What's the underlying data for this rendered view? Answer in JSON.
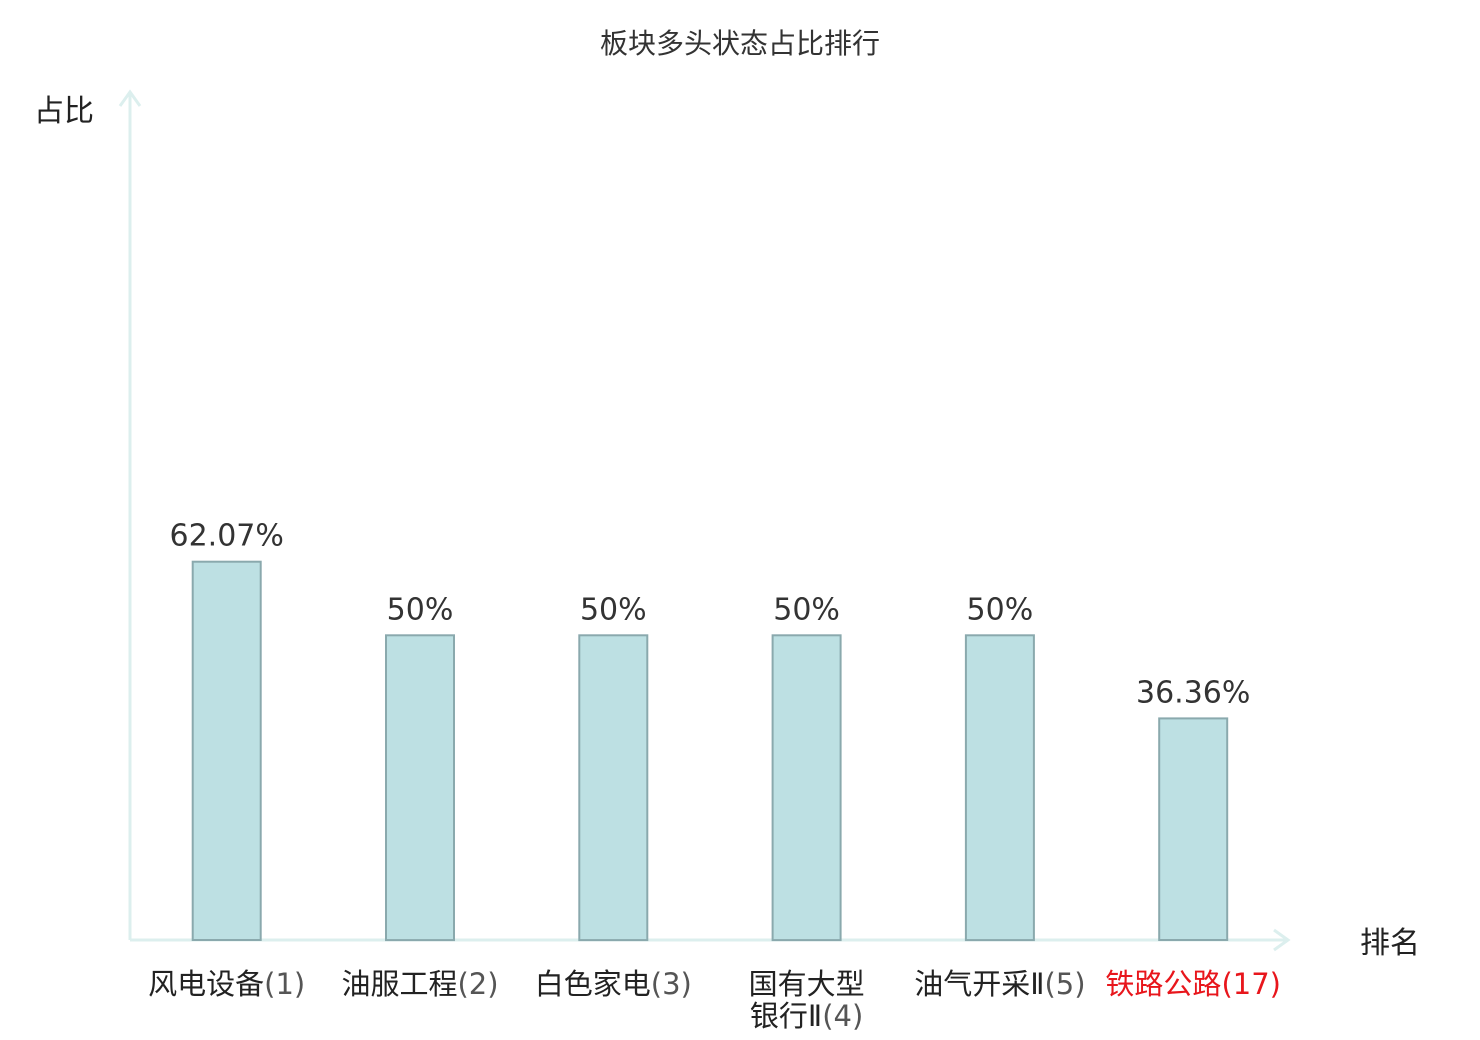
{
  "chart_data": {
    "type": "bar",
    "title": "板块多头状态占比排行",
    "ylabel": "占比",
    "xlabel": "排名",
    "ylim": [
      0,
      100
    ],
    "grid": false,
    "categories": [
      {
        "name": "风电设备",
        "rank": "(1)",
        "highlight": false
      },
      {
        "name": "油服工程",
        "rank": "(2)",
        "highlight": false
      },
      {
        "name": "白色家电",
        "rank": "(3)",
        "highlight": false
      },
      {
        "name": "国有大型银行Ⅱ",
        "rank": "(4)",
        "highlight": false
      },
      {
        "name": "油气开采Ⅱ",
        "rank": "(5)",
        "highlight": false
      },
      {
        "name": "铁路公路",
        "rank": "(17)",
        "highlight": true
      }
    ],
    "values": [
      62.07,
      50,
      50,
      50,
      50,
      36.36
    ],
    "value_labels": [
      "62.07%",
      "50%",
      "50%",
      "50%",
      "50%",
      "36.36%"
    ],
    "colors": {
      "bar_fill": "#bde0e3",
      "bar_stroke": "#8aa9ad",
      "axis": "#dcefee",
      "highlight_text": "#e8161c"
    }
  }
}
